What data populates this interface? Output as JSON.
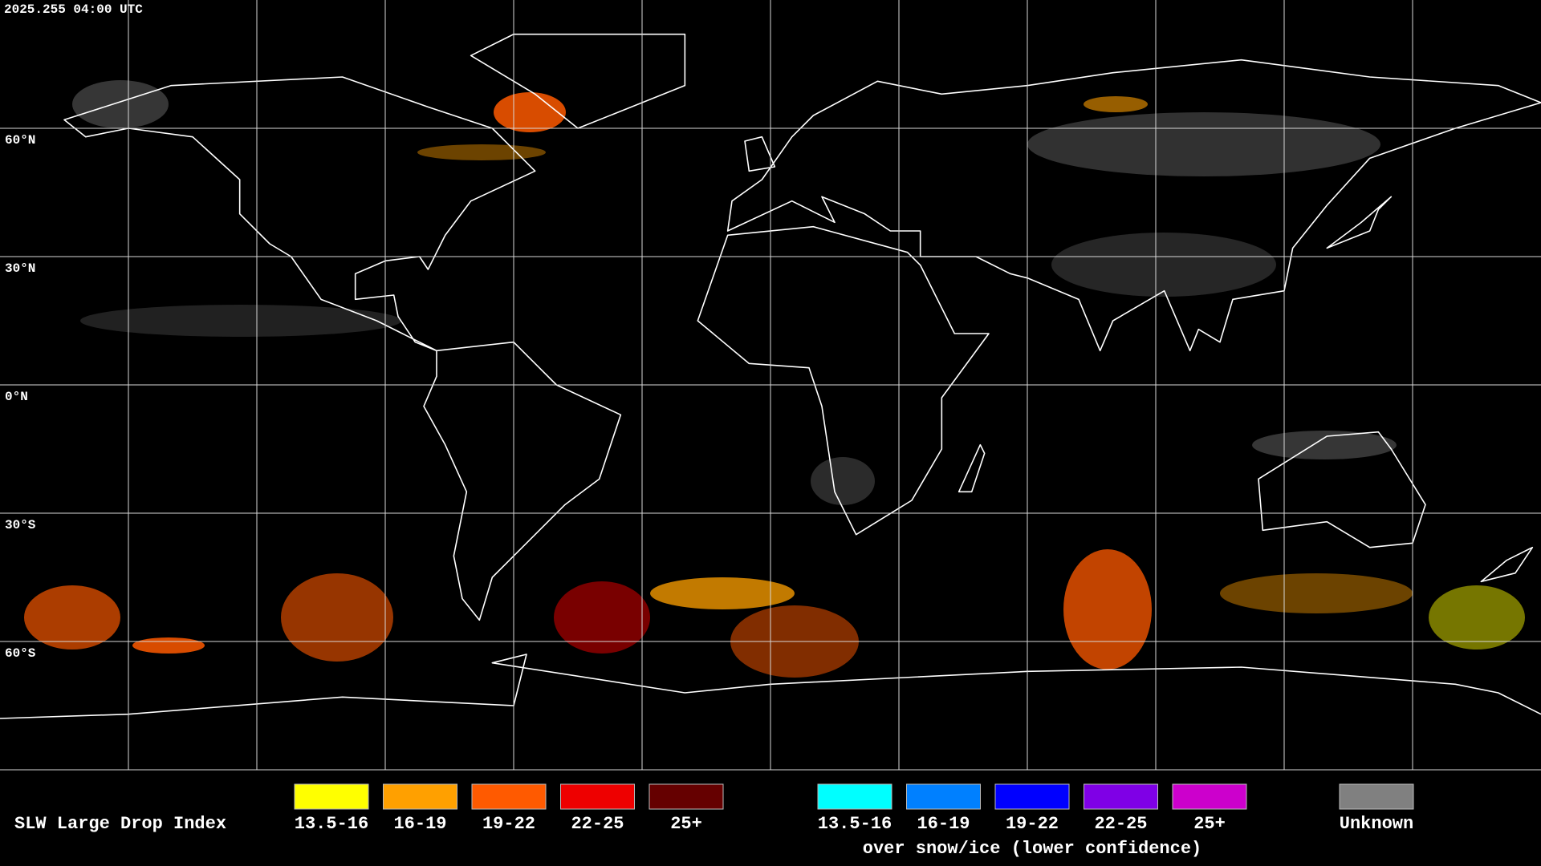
{
  "header": {
    "timestamp": "2025.255 04:00 UTC"
  },
  "map": {
    "lat_labels": [
      "60°N",
      "30°N",
      "0°N",
      "30°S",
      "60°S"
    ]
  },
  "legend": {
    "title": "SLW Large Drop Index",
    "groups": [
      {
        "items": [
          {
            "label": "13.5-16",
            "color": "#ffff00"
          },
          {
            "label": "16-19",
            "color": "#ffa000"
          },
          {
            "label": "19-22",
            "color": "#ff5a00"
          },
          {
            "label": "22-25",
            "color": "#ee0000"
          },
          {
            "label": "25+",
            "color": "#650000"
          }
        ]
      },
      {
        "items": [
          {
            "label": "13.5-16",
            "color": "#00ffff"
          },
          {
            "label": "16-19",
            "color": "#0080ff"
          },
          {
            "label": "19-22",
            "color": "#0000ff"
          },
          {
            "label": "22-25",
            "color": "#7f00e6"
          },
          {
            "label": "25+",
            "color": "#cc00cc"
          }
        ],
        "caption": "over snow/ice (lower confidence)"
      },
      {
        "items": [
          {
            "label": "Unknown",
            "color": "#808080"
          }
        ]
      }
    ]
  }
}
